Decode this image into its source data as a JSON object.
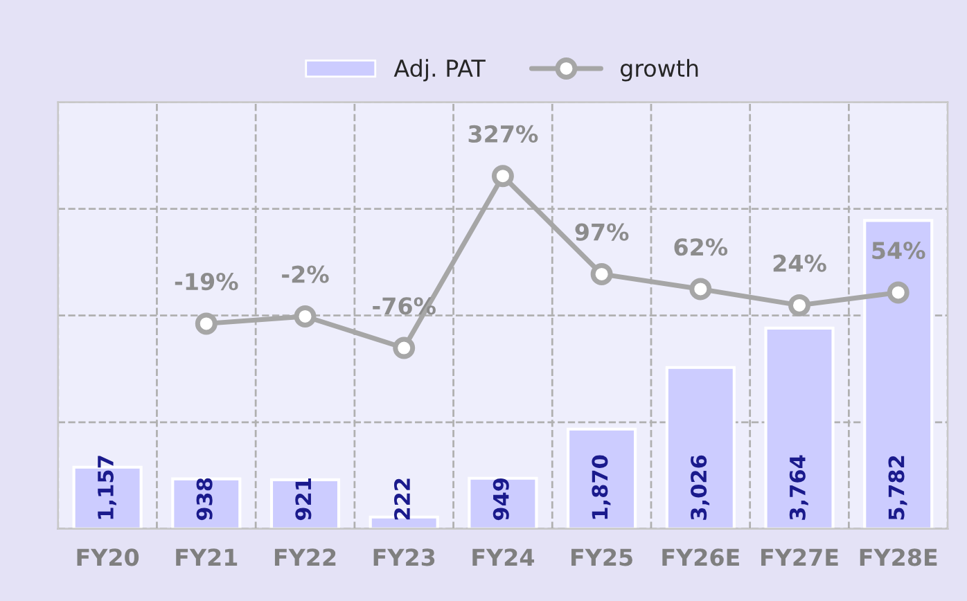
{
  "chart_data": {
    "type": "bar",
    "categories": [
      "FY20",
      "FY21",
      "FY22",
      "FY23",
      "FY24",
      "FY25",
      "FY26E",
      "FY27E",
      "FY28E"
    ],
    "series": [
      {
        "name": "Adj. PAT",
        "color": "#ccccff",
        "values": [
          1157,
          938,
          921,
          222,
          949,
          1870,
          3026,
          3764,
          5782
        ],
        "value_labels": [
          "1,157",
          "938",
          "921",
          "222",
          "949",
          "1,870",
          "3,026",
          "3,764",
          "5,782"
        ]
      },
      {
        "name": "growth",
        "type": "line",
        "axis": "y2",
        "color": "#a6a6a6",
        "values": [
          null,
          -19,
          -2,
          -76,
          327,
          97,
          62,
          24,
          54
        ],
        "value_labels": [
          null,
          "-19%",
          "-2%",
          "-76%",
          "327%",
          "97%",
          "62%",
          "24%",
          "54%"
        ]
      }
    ],
    "ylim": [
      0,
      8000
    ],
    "yticks": [
      {
        "value": 0,
        "label": null
      },
      {
        "value": 2000,
        "label": null
      },
      {
        "value": 4000,
        "label": null
      },
      {
        "value": 6000,
        "label": null
      },
      {
        "value": 8000,
        "label": null
      }
    ],
    "y2lim": [
      -500,
      500
    ],
    "tick_labels": "x",
    "grid": true,
    "legend": "top",
    "marker": "circle",
    "line_style": "solid"
  }
}
